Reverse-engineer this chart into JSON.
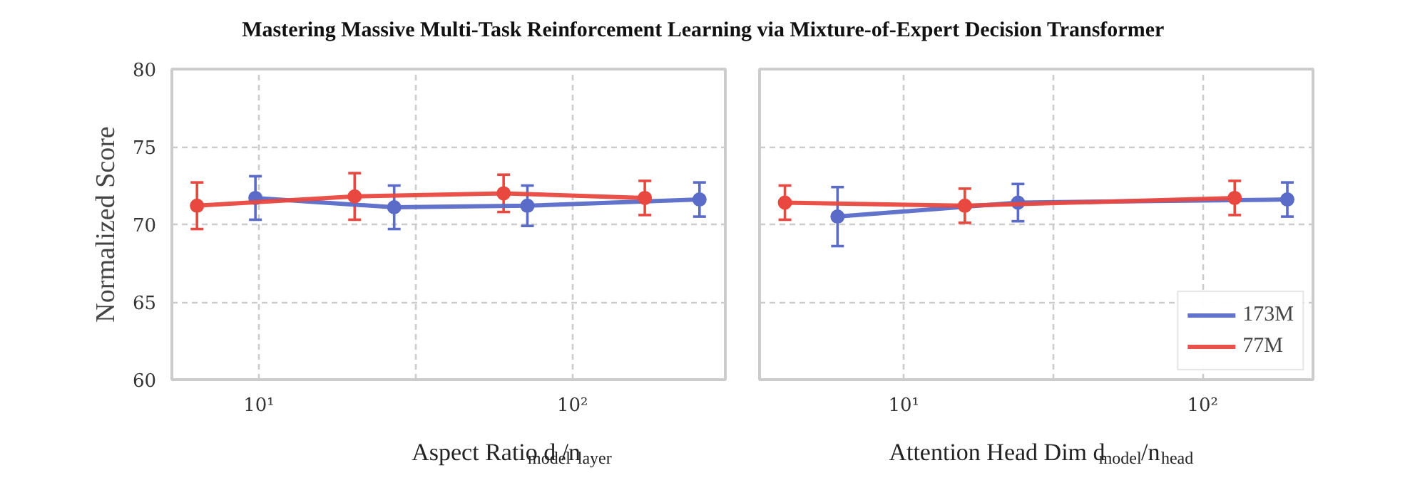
{
  "chart_data": [
    {
      "type": "line",
      "title": "Mastering Massive Multi-Task Reinforcement Learning via Mixture-of-Expert Decision Transformer",
      "xlabel": "Aspect Ratio d$_{model}$/n$_{layer}$",
      "ylabel": "Normalized Score",
      "log": "x",
      "xlim": [
        5.28,
        307
      ],
      "xticks": [
        {
          "value": 10,
          "label": "10¹"
        },
        {
          "value": 31.62,
          "label": null
        },
        {
          "value": 100,
          "label": "10²"
        }
      ],
      "ylim": [
        60,
        80
      ],
      "yticks": [
        60,
        65,
        70,
        75,
        80
      ],
      "grid": true,
      "marker": "circle",
      "line_style": "solid",
      "series": [
        {
          "color": "#5a6bc8",
          "x": [
            9.75,
            27,
            71.8,
            254
          ],
          "values": [
            71.7,
            71.1,
            71.2,
            71.6
          ],
          "errors": [
            1.4,
            1.4,
            1.3,
            1.1
          ]
        },
        {
          "color": "#e8483f",
          "x": [
            6.35,
            20.2,
            60.3,
            170
          ],
          "values": [
            71.2,
            71.8,
            72.0,
            71.7
          ],
          "errors": [
            1.5,
            1.5,
            1.2,
            1.1
          ]
        }
      ]
    },
    {
      "type": "line",
      "xlabel": "Attention Head Dim d$_{model}$/n$_{head}$",
      "log": "x",
      "xlim": [
        3.29,
        234
      ],
      "xticks": [
        {
          "value": 10,
          "label": "10¹"
        },
        {
          "value": 31.62,
          "label": null
        },
        {
          "value": 100,
          "label": "10²"
        }
      ],
      "ylim": [
        60,
        80
      ],
      "yticks": [
        60,
        65,
        70,
        75,
        80
      ],
      "grid": true,
      "marker": "circle",
      "line_style": "solid",
      "legend": "bottom right",
      "tick_labels": "x",
      "series": [
        {
          "name": "173M",
          "color": "#5a6bc8",
          "x": [
            6.0,
            24.1,
            192
          ],
          "values": [
            70.5,
            71.4,
            71.6
          ],
          "errors": [
            1.9,
            1.2,
            1.1
          ]
        },
        {
          "name": "77M",
          "color": "#e8483f",
          "x": [
            4.0,
            16.0,
            128
          ],
          "values": [
            71.4,
            71.2,
            71.7
          ],
          "errors": [
            1.1,
            1.1,
            1.1
          ]
        }
      ]
    }
  ]
}
